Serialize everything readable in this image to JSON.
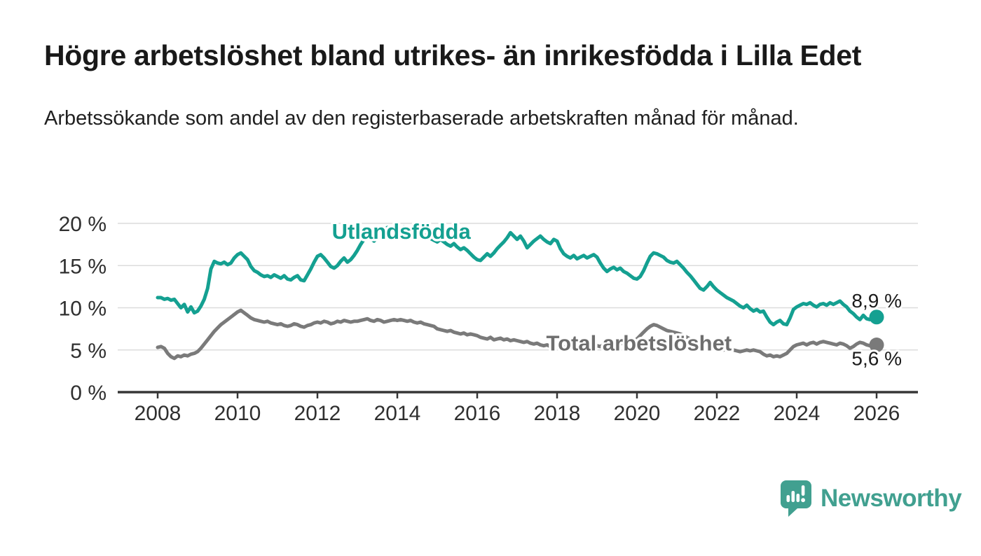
{
  "header": {
    "title": "Högre arbetslöshet bland utrikes- än inrikesfödda i Lilla Edet",
    "subtitle": "Arbetssökande som andel av den registerbaserade arbetskraften månad för månad."
  },
  "colors": {
    "axis": "#363636",
    "grid": "#DCDCDC",
    "tick_label": "#2F2F2F",
    "value_label": "#1B1B1B",
    "background": "#FFFFFF"
  },
  "chart_data": {
    "type": "line",
    "title": "Högre arbetslöshet bland utrikes- än inrikesfödda i Lilla Edet",
    "xlabel": "",
    "ylabel": "",
    "unit": "%",
    "x_unit": "year, monthly resolution",
    "x_start_year": 2008,
    "points_per_year": 12,
    "xlim": [
      2007,
      2027
    ],
    "ylim": [
      0,
      20
    ],
    "grid": true,
    "legend_position": "inline-labels",
    "x_ticks": [
      2008,
      2010,
      2012,
      2014,
      2016,
      2018,
      2020,
      2022,
      2024,
      2026
    ],
    "x_tick_labels": [
      "2008",
      "2010",
      "2012",
      "2014",
      "2016",
      "2018",
      "2020",
      "2022",
      "2024",
      "2026"
    ],
    "y_ticks": [
      0,
      5,
      10,
      15,
      20
    ],
    "y_tick_labels": [
      "0 %",
      "5 %",
      "10 %",
      "15 %",
      "20 %"
    ],
    "series": [
      {
        "name": "Utlandsfödda",
        "color": "#14A091",
        "label_color": "#14A091",
        "end_label": "8,9 %",
        "last_value": 8.9,
        "label_at": {
          "x": 2014.1,
          "y": 19.0
        },
        "end_label_dy": -14,
        "values": [
          11.2,
          11.2,
          11.0,
          11.1,
          10.9,
          11.0,
          10.5,
          10.0,
          10.4,
          9.5,
          10.1,
          9.4,
          9.6,
          10.2,
          11.0,
          12.3,
          14.6,
          15.5,
          15.3,
          15.2,
          15.4,
          15.1,
          15.3,
          15.9,
          16.3,
          16.5,
          16.1,
          15.7,
          14.9,
          14.4,
          14.2,
          13.9,
          13.7,
          13.8,
          13.6,
          13.9,
          13.7,
          13.5,
          13.8,
          13.4,
          13.3,
          13.6,
          13.8,
          13.3,
          13.2,
          13.9,
          14.6,
          15.4,
          16.1,
          16.3,
          15.9,
          15.4,
          14.9,
          14.7,
          15.0,
          15.5,
          15.9,
          15.4,
          15.7,
          16.2,
          16.8,
          17.5,
          18.1,
          18.5,
          18.2,
          17.9,
          18.3,
          18.8,
          19.2,
          19.5,
          19.2,
          18.9,
          19.1,
          19.4,
          19.6,
          19.3,
          19.0,
          19.2,
          18.8,
          18.5,
          18.7,
          18.4,
          18.2,
          18.0,
          17.8,
          18.1,
          17.8,
          17.5,
          17.3,
          17.6,
          17.2,
          16.9,
          17.1,
          16.8,
          16.4,
          16.0,
          15.7,
          15.6,
          16.0,
          16.4,
          16.1,
          16.5,
          17.0,
          17.4,
          17.8,
          18.3,
          18.9,
          18.5,
          18.1,
          18.5,
          17.9,
          17.1,
          17.5,
          17.9,
          18.2,
          18.5,
          18.1,
          17.8,
          17.6,
          18.1,
          17.9,
          17.0,
          16.4,
          16.1,
          15.9,
          16.2,
          15.8,
          16.0,
          16.2,
          15.9,
          16.1,
          16.3,
          16.0,
          15.3,
          14.7,
          14.3,
          14.6,
          14.8,
          14.5,
          14.7,
          14.3,
          14.1,
          13.8,
          13.5,
          13.4,
          13.7,
          14.4,
          15.3,
          16.1,
          16.5,
          16.4,
          16.2,
          16.0,
          15.6,
          15.4,
          15.3,
          15.5,
          15.1,
          14.7,
          14.2,
          13.8,
          13.3,
          12.8,
          12.3,
          12.1,
          12.5,
          13.0,
          12.5,
          12.1,
          11.8,
          11.5,
          11.2,
          11.0,
          10.8,
          10.5,
          10.2,
          10.0,
          10.3,
          9.9,
          9.6,
          9.8,
          9.5,
          9.6,
          8.9,
          8.3,
          8.0,
          8.3,
          8.5,
          8.1,
          8.0,
          8.8,
          9.8,
          10.1,
          10.3,
          10.5,
          10.4,
          10.6,
          10.3,
          10.1,
          10.4,
          10.5,
          10.3,
          10.6,
          10.4,
          10.6,
          10.8,
          10.4,
          10.1,
          9.6,
          9.3,
          8.9,
          8.6,
          9.1,
          8.7,
          8.6,
          8.8,
          8.9
        ]
      },
      {
        "name": "Total arbetslöshet",
        "color": "#7A7A7A",
        "label_color": "#6E6E6E",
        "end_label": "5,6 %",
        "last_value": 5.6,
        "label_at": {
          "x": 2020.05,
          "y": 5.75
        },
        "end_label_dy": 29,
        "values": [
          5.3,
          5.4,
          5.2,
          4.6,
          4.2,
          4.0,
          4.3,
          4.2,
          4.4,
          4.3,
          4.5,
          4.6,
          4.8,
          5.2,
          5.7,
          6.2,
          6.7,
          7.2,
          7.6,
          8.0,
          8.3,
          8.6,
          8.9,
          9.2,
          9.5,
          9.7,
          9.4,
          9.1,
          8.8,
          8.6,
          8.5,
          8.4,
          8.3,
          8.4,
          8.2,
          8.1,
          8.0,
          8.1,
          7.9,
          7.8,
          7.9,
          8.1,
          8.0,
          7.8,
          7.7,
          7.9,
          8.0,
          8.2,
          8.3,
          8.2,
          8.4,
          8.3,
          8.1,
          8.2,
          8.4,
          8.3,
          8.5,
          8.4,
          8.3,
          8.4,
          8.4,
          8.5,
          8.6,
          8.7,
          8.5,
          8.4,
          8.6,
          8.5,
          8.3,
          8.4,
          8.5,
          8.6,
          8.5,
          8.6,
          8.5,
          8.4,
          8.5,
          8.3,
          8.2,
          8.3,
          8.1,
          8.0,
          7.9,
          7.8,
          7.5,
          7.4,
          7.3,
          7.2,
          7.3,
          7.1,
          7.0,
          6.9,
          7.0,
          6.8,
          6.9,
          6.8,
          6.7,
          6.5,
          6.4,
          6.3,
          6.5,
          6.2,
          6.3,
          6.4,
          6.2,
          6.3,
          6.1,
          6.2,
          6.1,
          6.0,
          5.9,
          6.0,
          5.8,
          5.7,
          5.8,
          5.6,
          5.5,
          5.6,
          5.4,
          5.5,
          5.4,
          5.5,
          5.3,
          5.4,
          5.2,
          5.3,
          5.4,
          5.2,
          5.3,
          5.4,
          5.5,
          5.4,
          5.5,
          5.4,
          5.6,
          5.5,
          5.7,
          5.6,
          5.8,
          5.7,
          5.9,
          5.8,
          6.0,
          6.1,
          6.3,
          6.7,
          7.1,
          7.5,
          7.8,
          8.0,
          7.9,
          7.7,
          7.5,
          7.3,
          7.2,
          7.1,
          7.0,
          6.9,
          6.7,
          6.5,
          6.3,
          6.1,
          5.9,
          5.7,
          5.6,
          5.5,
          5.4,
          5.3,
          5.2,
          5.1,
          5.0,
          5.1,
          4.9,
          5.0,
          4.9,
          4.8,
          4.9,
          5.0,
          4.9,
          5.0,
          4.9,
          4.8,
          4.5,
          4.3,
          4.4,
          4.2,
          4.3,
          4.2,
          4.4,
          4.6,
          5.0,
          5.4,
          5.6,
          5.7,
          5.8,
          5.6,
          5.8,
          5.9,
          5.7,
          5.9,
          6.0,
          5.9,
          5.8,
          5.7,
          5.6,
          5.8,
          5.7,
          5.5,
          5.2,
          5.4,
          5.7,
          5.9,
          5.8,
          5.6,
          5.5,
          5.6,
          5.6
        ]
      }
    ]
  },
  "branding": {
    "name": "Newsworthy",
    "color": "#41A090"
  }
}
